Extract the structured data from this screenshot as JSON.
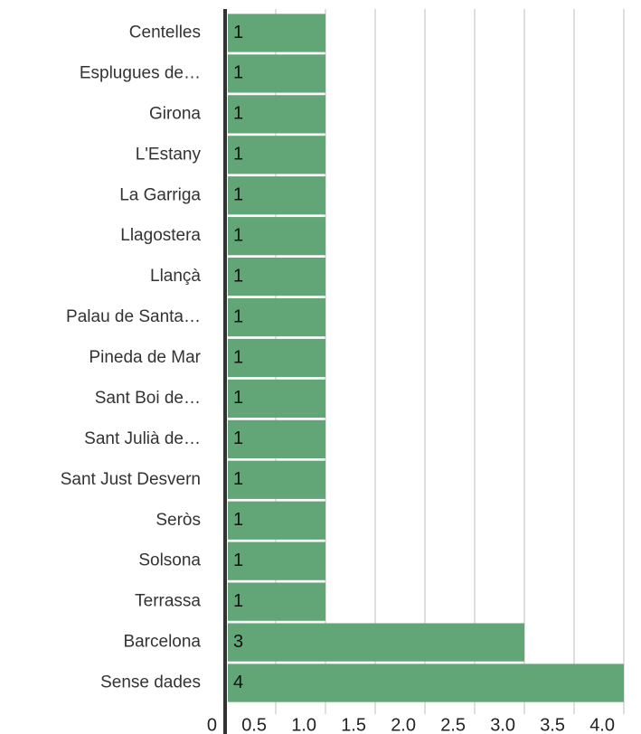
{
  "chart_data": {
    "type": "bar",
    "orientation": "horizontal",
    "categories": [
      "Centelles",
      "Esplugues de…",
      "Girona",
      "L'Estany",
      "La Garriga",
      "Llagostera",
      "Llançà",
      "Palau de Santa…",
      "Pineda de Mar",
      "Sant Boi de…",
      "Sant Julià de…",
      "Sant Just Desvern",
      "Seròs",
      "Solsona",
      "Terrassa",
      "Barcelona",
      "Sense dades"
    ],
    "values": [
      1,
      1,
      1,
      1,
      1,
      1,
      1,
      1,
      1,
      1,
      1,
      1,
      1,
      1,
      1,
      3,
      4
    ],
    "color": "#62a677",
    "xlim": [
      0,
      4
    ],
    "xticks": [
      0,
      0.5,
      {
        "value": 1,
        "label": "1.0"
      },
      {
        "value": 1.5,
        "label": "1.5"
      },
      {
        "value": 2,
        "label": "2.0"
      },
      {
        "value": 2.5,
        "label": "2.5"
      },
      {
        "value": 3,
        "label": "3.0"
      },
      {
        "value": 3.5,
        "label": "3.5"
      },
      {
        "value": 4,
        "label": "4.0"
      }
    ],
    "grid": true
  }
}
